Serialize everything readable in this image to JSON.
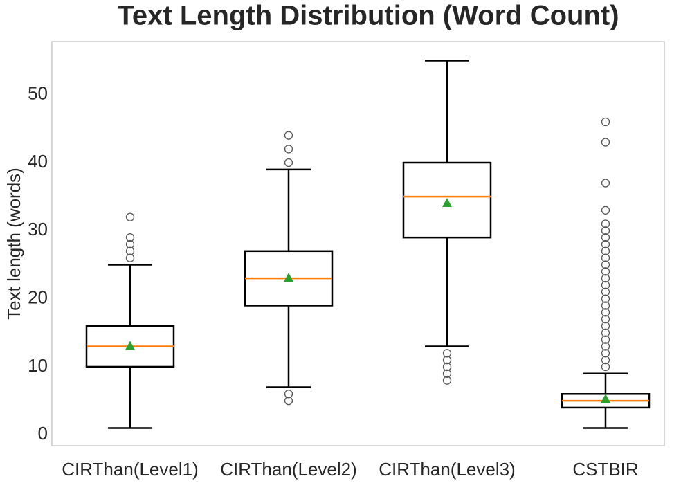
{
  "chart_data": {
    "type": "box",
    "title": "Text Length Distribution (Word Count)",
    "ylabel": "Text length (words)",
    "categories": [
      "CIRThan(Level1)",
      "CIRThan(Level2)",
      "CIRThan(Level3)",
      "CSTBIR"
    ],
    "boxes": [
      {
        "whislo": 1,
        "q1": 10,
        "med": 13,
        "q3": 16,
        "whishi": 25,
        "mean": 13.1,
        "fliers": [
          26,
          27,
          28,
          29,
          32
        ]
      },
      {
        "whislo": 7,
        "q1": 19,
        "med": 23,
        "q3": 27,
        "whishi": 39,
        "mean": 23.1,
        "fliers": [
          5,
          6,
          40,
          42,
          44
        ]
      },
      {
        "whislo": 13,
        "q1": 29,
        "med": 35,
        "q3": 40,
        "whishi": 55,
        "mean": 34.1,
        "fliers": [
          8,
          9,
          10,
          11,
          12
        ]
      },
      {
        "whislo": 1,
        "q1": 4,
        "med": 5,
        "q3": 6,
        "whishi": 9,
        "mean": 5.3,
        "fliers": [
          10,
          11,
          12,
          13,
          14,
          15,
          16,
          17,
          18,
          19,
          20,
          21,
          22,
          23,
          24,
          25,
          26,
          27,
          28,
          29,
          30,
          31,
          33,
          37,
          43,
          46
        ]
      }
    ],
    "box_color": "#000000",
    "median_color": "#ff7f0e",
    "mean_color": "#2ca02c",
    "flier_color": "#555555",
    "ylim": [
      -1.6,
      57.8
    ],
    "yticks": [
      0,
      10,
      20,
      30,
      40,
      50
    ],
    "grid": false
  }
}
